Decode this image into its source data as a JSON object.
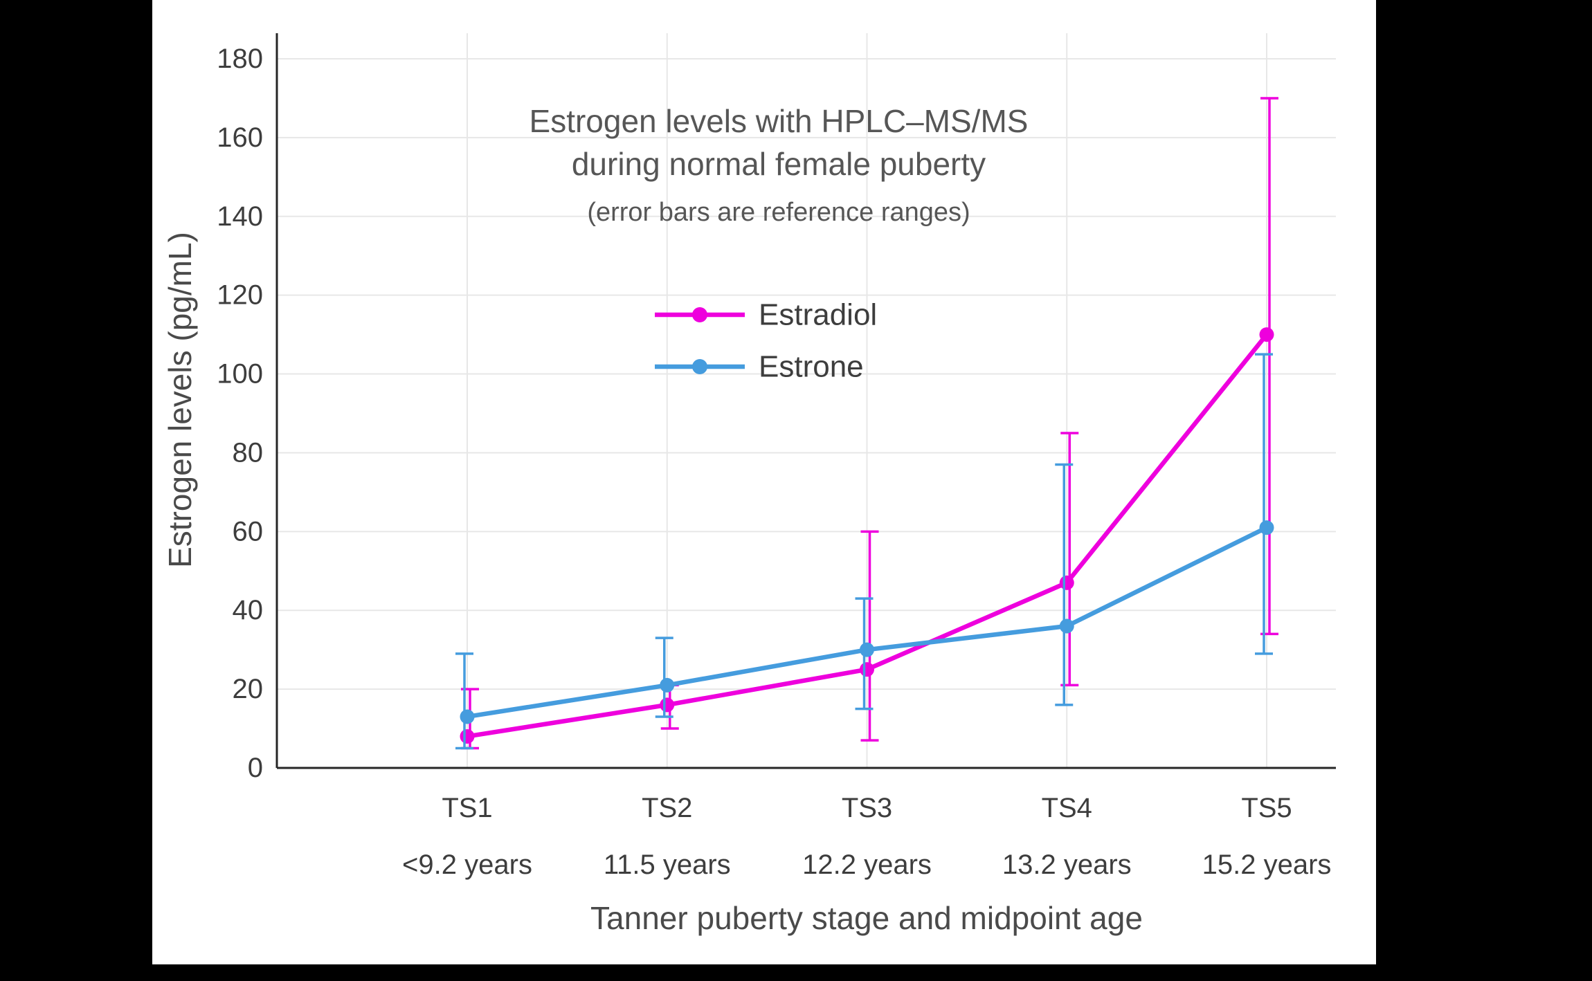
{
  "colors": {
    "background": "#000000",
    "panel": "#ffffff",
    "grid": "#e7e7e7",
    "axis": "#262626",
    "tick_text": "#3d3d3d",
    "title_text": "#565656"
  },
  "chart_data": {
    "type": "line",
    "title": "Estrogen levels with HPLC–MS/MS",
    "title_line2": "during normal female puberty",
    "subtitle": "(error bars are reference ranges)",
    "xlabel": "Tanner puberty stage and midpoint age",
    "ylabel": "Estrogen levels (pg/mL)",
    "categories": [
      "TS1",
      "TS2",
      "TS3",
      "TS4",
      "TS5"
    ],
    "category_sublabels": [
      "<9.2 years",
      "11.5 years",
      "12.2 years",
      "13.2 years",
      "15.2 years"
    ],
    "ylim": [
      0,
      186
    ],
    "yticks": [
      0,
      20,
      40,
      60,
      80,
      100,
      120,
      140,
      160,
      180
    ],
    "grid": true,
    "marker": "circle",
    "legend_position": "inside-upper-left",
    "series": [
      {
        "name": "Estradiol",
        "color": "#ee00dd",
        "values": [
          8,
          16,
          25,
          47,
          110
        ],
        "error_low": [
          5,
          10,
          7,
          21,
          34
        ],
        "error_high": [
          20,
          21,
          60,
          85,
          170
        ]
      },
      {
        "name": "Estrone",
        "color": "#459cde",
        "values": [
          13,
          21,
          30,
          36,
          61
        ],
        "error_low": [
          5,
          13,
          15,
          16,
          29
        ],
        "error_high": [
          29,
          33,
          43,
          77,
          105
        ]
      }
    ]
  }
}
